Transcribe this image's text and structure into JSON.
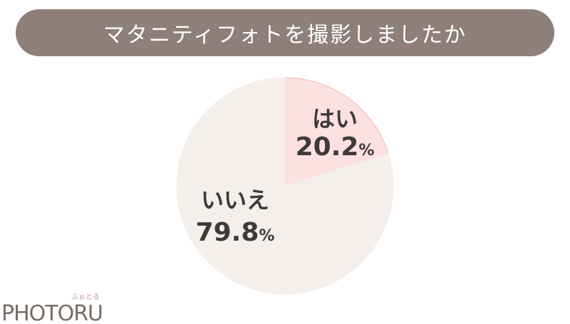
{
  "title": "マタニティフォトを撮影しましたか",
  "colors": {
    "title_bg": "#8f7f79",
    "title_text": "#ffffff",
    "yes_fill": "#fde0e0",
    "yes_stroke": "#f4b7b7",
    "no_fill": "#f5efec",
    "label_text": "#3f3a3a"
  },
  "chart_data": {
    "type": "pie",
    "slices": [
      {
        "label": "はい",
        "value": 20.2,
        "display": "20.2",
        "unit": "%"
      },
      {
        "label": "いいえ",
        "value": 79.8,
        "display": "79.8",
        "unit": "%"
      }
    ]
  },
  "logo": {
    "text": "PHOTORU",
    "ruby": "ふぉとる"
  }
}
